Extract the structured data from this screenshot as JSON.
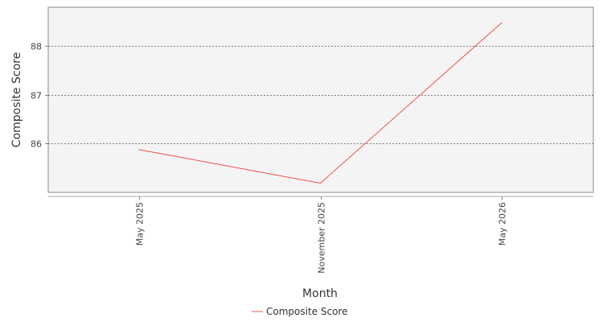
{
  "colors": {
    "series": "#f0504a",
    "plot_background": "#f4f4f4",
    "plot_border": "#888888",
    "grid": "#555555"
  },
  "chart_data": {
    "type": "line",
    "title": "",
    "xlabel": "Month",
    "ylabel": "Composite Score",
    "x": [
      "May 2025",
      "November 2025",
      "May 2026"
    ],
    "series": [
      {
        "name": "Composite Score",
        "values": [
          85.87,
          85.18,
          88.48
        ]
      }
    ],
    "y_ticks": [
      86,
      87,
      88
    ],
    "ylim": [
      84.99,
      88.8
    ],
    "grid": "horizontal dashed",
    "legend_position": "bottom-center"
  }
}
